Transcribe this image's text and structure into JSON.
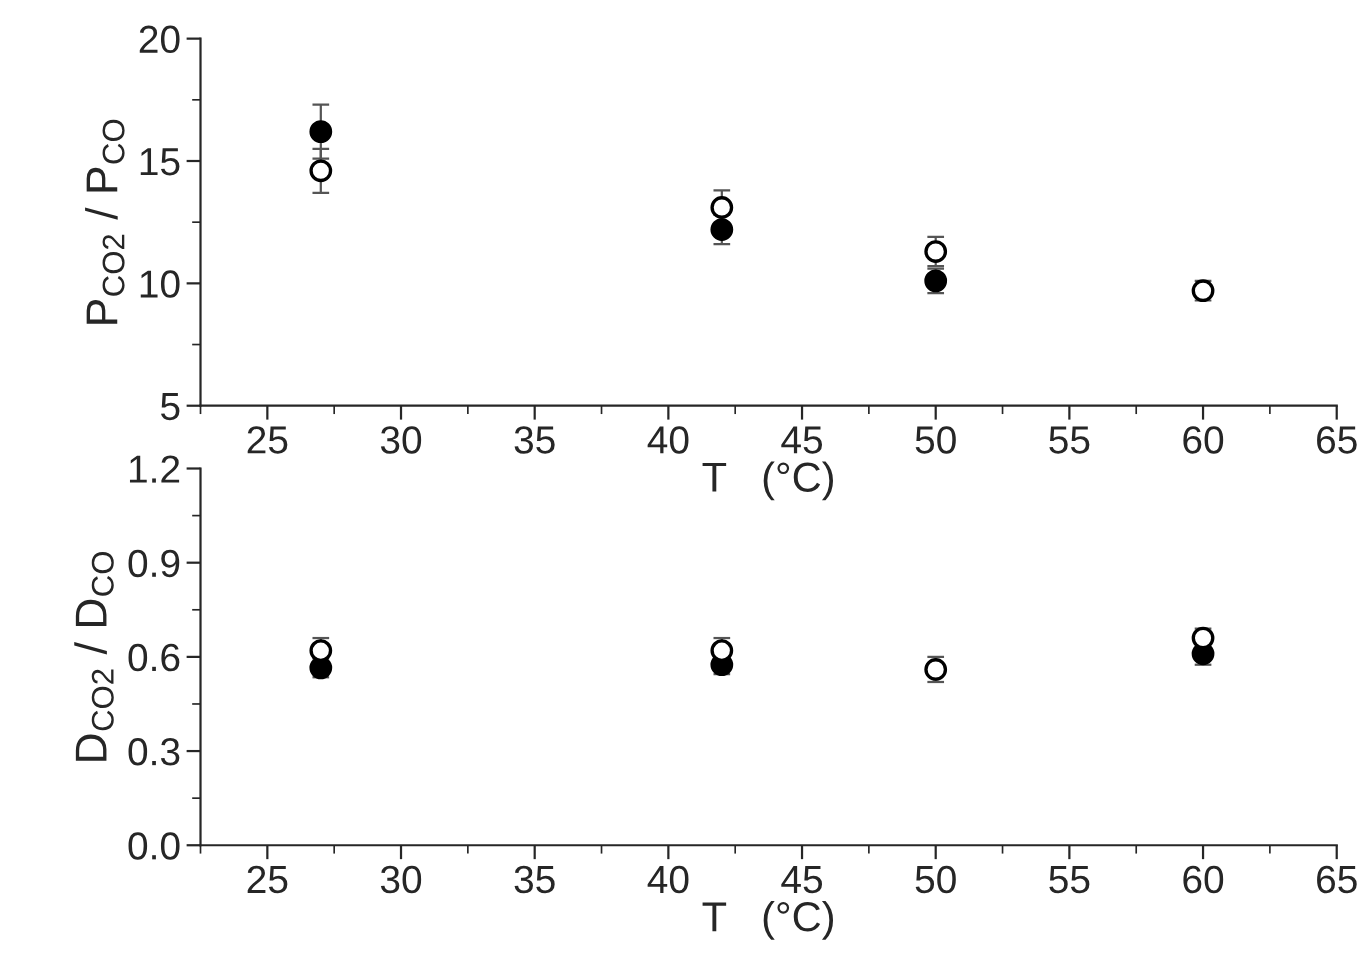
{
  "chart_data": [
    {
      "type": "scatter",
      "xlabel": "T   (°C)",
      "ylabel": "P$_{CO2}$ / P$_{CO}$",
      "x": [
        27,
        42,
        50,
        60
      ],
      "xlim": [
        22.5,
        65
      ],
      "xticks": [
        25,
        30,
        35,
        40,
        45,
        50,
        55,
        60,
        65
      ],
      "ylim": [
        5,
        20
      ],
      "yticks": [
        5,
        10,
        15,
        20
      ],
      "marker": "circle",
      "grid": false,
      "legend": false,
      "series": [
        {
          "color": "#000000",
          "values": [
            16.2,
            12.2,
            10.1,
            null
          ],
          "errors": [
            1.1,
            0.6,
            0.5,
            null
          ]
        },
        {
          "color": "#ffffff",
          "values": [
            14.6,
            13.1,
            11.3,
            9.7
          ],
          "errors": [
            0.9,
            0.7,
            0.6,
            0.4
          ]
        }
      ]
    },
    {
      "type": "scatter",
      "xlabel": "T   (°C)",
      "ylabel": "D$_{CO2}$ / D$_{CO}$",
      "x": [
        27,
        42,
        50,
        60
      ],
      "xlim": [
        22.5,
        65
      ],
      "xticks": [
        25,
        30,
        35,
        40,
        45,
        50,
        55,
        60,
        65
      ],
      "ylim": [
        0,
        1.2
      ],
      "yticks": [
        {
          "value": 0,
          "label": "0.0"
        },
        0.3,
        0.6,
        0.9,
        1.2
      ],
      "marker": "circle",
      "grid": false,
      "legend": false,
      "series": [
        {
          "color": "#000000",
          "values": [
            0.565,
            0.575,
            null,
            0.61
          ],
          "errors": [
            0.03,
            0.03,
            null,
            0.035
          ]
        },
        {
          "color": "#ffffff",
          "values": [
            0.62,
            0.62,
            0.56,
            0.66
          ],
          "errors": [
            0.04,
            0.04,
            0.04,
            0.03
          ]
        }
      ]
    }
  ]
}
